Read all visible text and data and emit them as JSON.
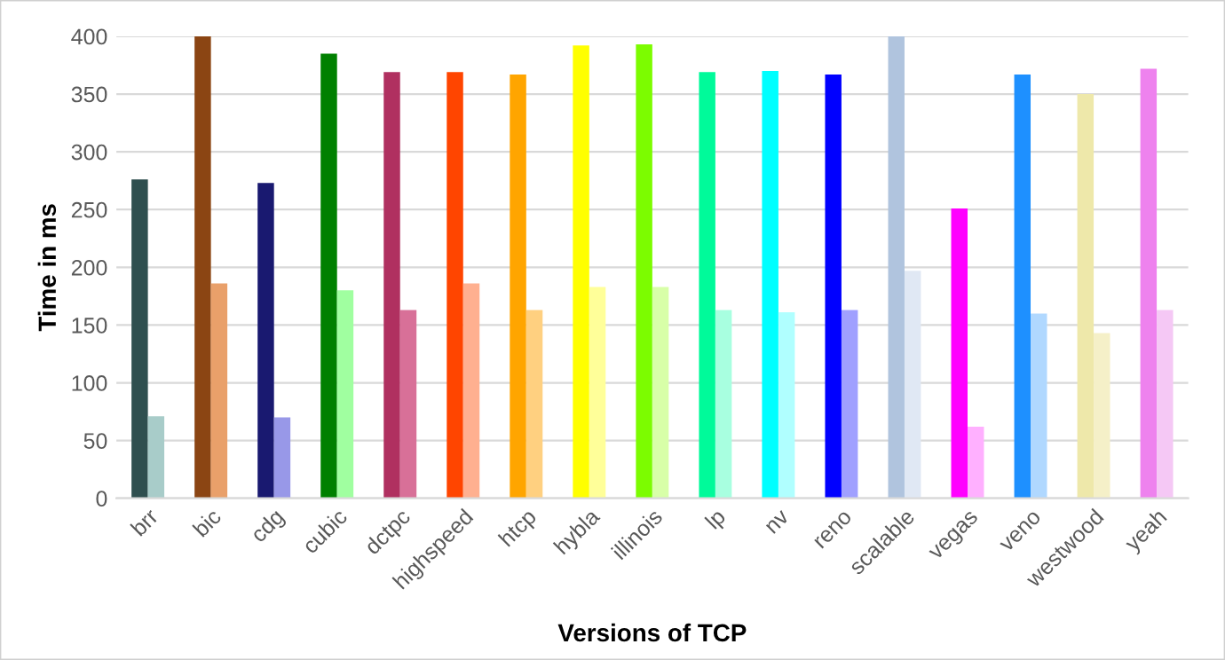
{
  "chart_data": {
    "type": "bar",
    "xlabel": "Versions of TCP",
    "ylabel": "Time in ms",
    "categories": [
      "brr",
      "bic",
      "cdg",
      "cubic",
      "dctpc",
      "highspeed",
      "htcp",
      "hybla",
      "illinois",
      "lp",
      "nv",
      "reno",
      "scalable",
      "vegas",
      "veno",
      "westwood",
      "yeah"
    ],
    "series": [
      {
        "colors": [
          "#2f4f4f",
          "#8b4513",
          "#191970",
          "#008000",
          "#b03060",
          "#ff4500",
          "#ffa500",
          "#ffff00",
          "#7cfc00",
          "#00fa9a",
          "#00ffff",
          "#0000ff",
          "#b0c4de",
          "#ff00ff",
          "#1e90ff",
          "#eee8aa",
          "#ee82ee"
        ],
        "values": [
          276,
          400,
          273,
          385,
          369,
          369,
          367,
          392,
          393,
          369,
          370,
          367,
          400,
          251,
          367,
          350,
          372
        ]
      },
      {
        "colors": [
          "#a8ccc9",
          "#e9a06a",
          "#9898e8",
          "#a0ffa0",
          "#d87098",
          "#ffb090",
          "#ffd080",
          "#ffff99",
          "#d8ffa8",
          "#a8ffe0",
          "#b0ffff",
          "#a0a0ff",
          "#e0e8f4",
          "#ffb0ff",
          "#b0d8ff",
          "#f5f0c8",
          "#f5c8f5"
        ],
        "values": [
          71,
          186,
          70,
          180,
          163,
          186,
          163,
          183,
          183,
          163,
          161,
          163,
          197,
          62,
          160,
          143,
          163
        ]
      }
    ],
    "ylim": [
      0,
      400
    ],
    "yticks": [
      0,
      50,
      100,
      150,
      200,
      250,
      300,
      350,
      400
    ],
    "grid": "y",
    "legend": false
  }
}
